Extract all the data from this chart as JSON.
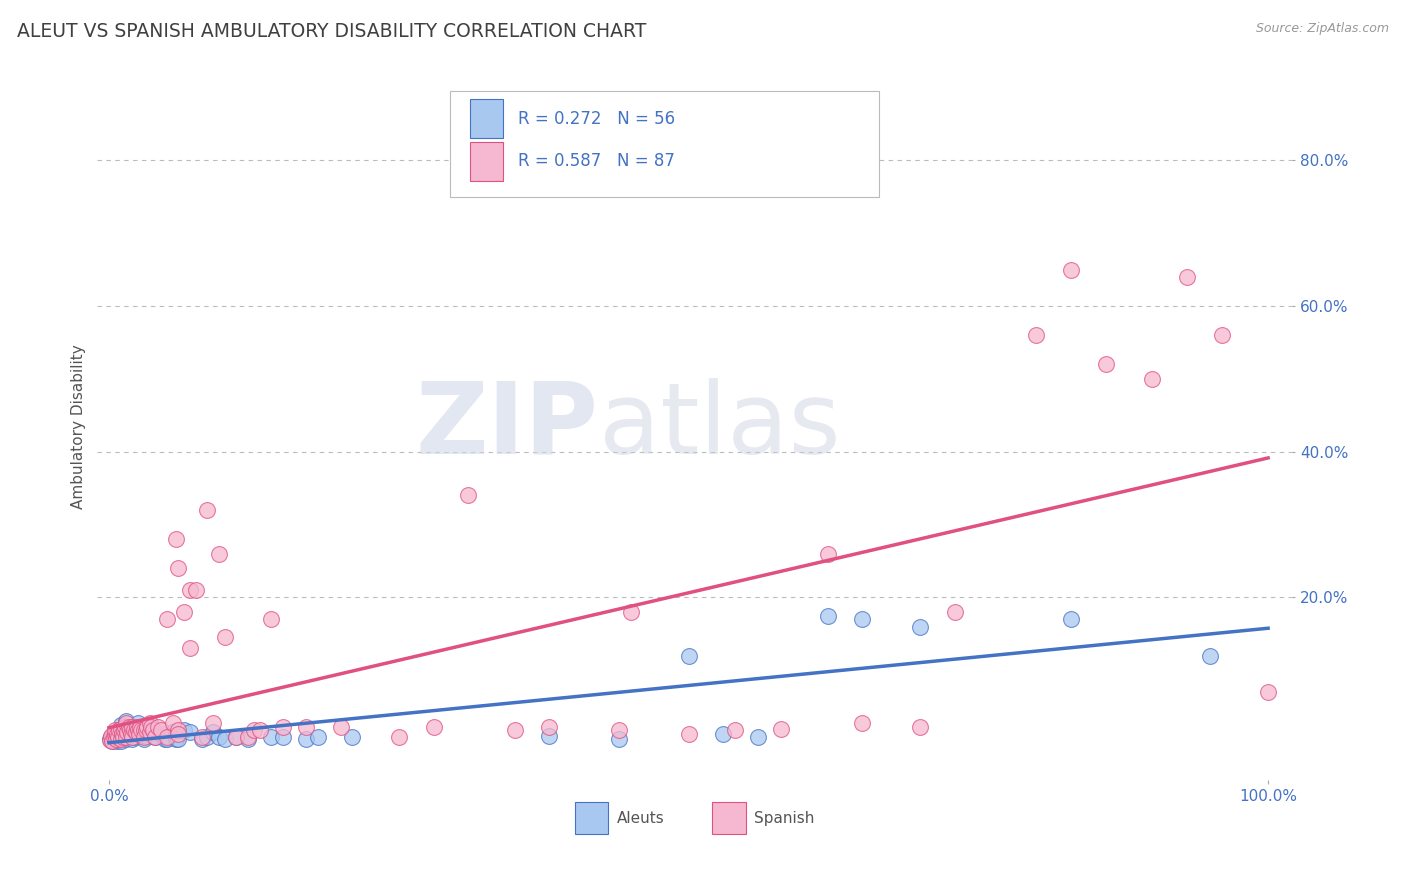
{
  "title": "ALEUT VS SPANISH AMBULATORY DISABILITY CORRELATION CHART",
  "source": "Source: ZipAtlas.com",
  "ylabel": "Ambulatory Disability",
  "xlim": [
    -0.01,
    1.02
  ],
  "ylim": [
    -0.05,
    0.92
  ],
  "ytick_values": [
    0.2,
    0.4,
    0.6,
    0.8
  ],
  "legend_line1": "R = 0.272   N = 56",
  "legend_line2": "R = 0.587   N = 87",
  "aleut_color": "#A8C8F0",
  "spanish_color": "#F5B8D0",
  "aleut_edge_color": "#4472C4",
  "spanish_edge_color": "#E05080",
  "aleut_line_color": "#4472C4",
  "spanish_line_color": "#E05080",
  "background_color": "#FFFFFF",
  "grid_color": "#BBBBBB",
  "title_color": "#404040",
  "watermark_zip": "ZIP",
  "watermark_atlas": "atlas",
  "aleut_points": [
    [
      0.001,
      0.005
    ],
    [
      0.002,
      0.008
    ],
    [
      0.003,
      0.003
    ],
    [
      0.004,
      0.005
    ],
    [
      0.005,
      0.012
    ],
    [
      0.006,
      0.005
    ],
    [
      0.007,
      0.003
    ],
    [
      0.008,
      0.01
    ],
    [
      0.009,
      0.005
    ],
    [
      0.01,
      0.025
    ],
    [
      0.01,
      0.003
    ],
    [
      0.012,
      0.012
    ],
    [
      0.013,
      0.008
    ],
    [
      0.015,
      0.005
    ],
    [
      0.015,
      0.03
    ],
    [
      0.018,
      0.01
    ],
    [
      0.02,
      0.005
    ],
    [
      0.022,
      0.008
    ],
    [
      0.025,
      0.028
    ],
    [
      0.028,
      0.01
    ],
    [
      0.03,
      0.005
    ],
    [
      0.03,
      0.012
    ],
    [
      0.032,
      0.01
    ],
    [
      0.035,
      0.012
    ],
    [
      0.038,
      0.01
    ],
    [
      0.04,
      0.008
    ],
    [
      0.045,
      0.012
    ],
    [
      0.048,
      0.005
    ],
    [
      0.05,
      0.005
    ],
    [
      0.055,
      0.015
    ],
    [
      0.058,
      0.005
    ],
    [
      0.06,
      0.005
    ],
    [
      0.065,
      0.018
    ],
    [
      0.07,
      0.015
    ],
    [
      0.08,
      0.005
    ],
    [
      0.085,
      0.008
    ],
    [
      0.09,
      0.015
    ],
    [
      0.095,
      0.008
    ],
    [
      0.1,
      0.005
    ],
    [
      0.11,
      0.008
    ],
    [
      0.12,
      0.006
    ],
    [
      0.14,
      0.008
    ],
    [
      0.15,
      0.008
    ],
    [
      0.17,
      0.006
    ],
    [
      0.18,
      0.008
    ],
    [
      0.21,
      0.008
    ],
    [
      0.38,
      0.01
    ],
    [
      0.44,
      0.005
    ],
    [
      0.5,
      0.12
    ],
    [
      0.53,
      0.012
    ],
    [
      0.56,
      0.008
    ],
    [
      0.62,
      0.175
    ],
    [
      0.65,
      0.17
    ],
    [
      0.7,
      0.16
    ],
    [
      0.83,
      0.17
    ],
    [
      0.95,
      0.12
    ]
  ],
  "spanish_points": [
    [
      0.001,
      0.004
    ],
    [
      0.002,
      0.01
    ],
    [
      0.003,
      0.003
    ],
    [
      0.004,
      0.008
    ],
    [
      0.005,
      0.012
    ],
    [
      0.005,
      0.018
    ],
    [
      0.006,
      0.005
    ],
    [
      0.007,
      0.012
    ],
    [
      0.008,
      0.008
    ],
    [
      0.009,
      0.018
    ],
    [
      0.01,
      0.02
    ],
    [
      0.01,
      0.005
    ],
    [
      0.011,
      0.012
    ],
    [
      0.012,
      0.008
    ],
    [
      0.013,
      0.018
    ],
    [
      0.014,
      0.022
    ],
    [
      0.015,
      0.008
    ],
    [
      0.015,
      0.028
    ],
    [
      0.016,
      0.015
    ],
    [
      0.017,
      0.022
    ],
    [
      0.018,
      0.018
    ],
    [
      0.019,
      0.012
    ],
    [
      0.02,
      0.022
    ],
    [
      0.02,
      0.008
    ],
    [
      0.022,
      0.018
    ],
    [
      0.023,
      0.015
    ],
    [
      0.024,
      0.022
    ],
    [
      0.025,
      0.018
    ],
    [
      0.026,
      0.012
    ],
    [
      0.027,
      0.022
    ],
    [
      0.028,
      0.018
    ],
    [
      0.03,
      0.018
    ],
    [
      0.03,
      0.008
    ],
    [
      0.032,
      0.018
    ],
    [
      0.033,
      0.022
    ],
    [
      0.035,
      0.028
    ],
    [
      0.035,
      0.015
    ],
    [
      0.036,
      0.022
    ],
    [
      0.038,
      0.018
    ],
    [
      0.04,
      0.008
    ],
    [
      0.042,
      0.022
    ],
    [
      0.045,
      0.018
    ],
    [
      0.05,
      0.008
    ],
    [
      0.05,
      0.17
    ],
    [
      0.055,
      0.028
    ],
    [
      0.058,
      0.28
    ],
    [
      0.06,
      0.24
    ],
    [
      0.06,
      0.018
    ],
    [
      0.06,
      0.012
    ],
    [
      0.065,
      0.18
    ],
    [
      0.07,
      0.21
    ],
    [
      0.07,
      0.13
    ],
    [
      0.075,
      0.21
    ],
    [
      0.08,
      0.008
    ],
    [
      0.085,
      0.32
    ],
    [
      0.09,
      0.028
    ],
    [
      0.095,
      0.26
    ],
    [
      0.1,
      0.145
    ],
    [
      0.11,
      0.008
    ],
    [
      0.12,
      0.008
    ],
    [
      0.125,
      0.018
    ],
    [
      0.13,
      0.018
    ],
    [
      0.14,
      0.17
    ],
    [
      0.15,
      0.022
    ],
    [
      0.17,
      0.022
    ],
    [
      0.2,
      0.022
    ],
    [
      0.25,
      0.008
    ],
    [
      0.28,
      0.022
    ],
    [
      0.31,
      0.34
    ],
    [
      0.35,
      0.018
    ],
    [
      0.38,
      0.022
    ],
    [
      0.44,
      0.018
    ],
    [
      0.45,
      0.18
    ],
    [
      0.5,
      0.012
    ],
    [
      0.54,
      0.018
    ],
    [
      0.58,
      0.02
    ],
    [
      0.62,
      0.26
    ],
    [
      0.65,
      0.028
    ],
    [
      0.7,
      0.022
    ],
    [
      0.73,
      0.18
    ],
    [
      0.8,
      0.56
    ],
    [
      0.83,
      0.65
    ],
    [
      0.86,
      0.52
    ],
    [
      0.9,
      0.5
    ],
    [
      0.93,
      0.64
    ],
    [
      0.96,
      0.56
    ],
    [
      1.0,
      0.07
    ]
  ]
}
